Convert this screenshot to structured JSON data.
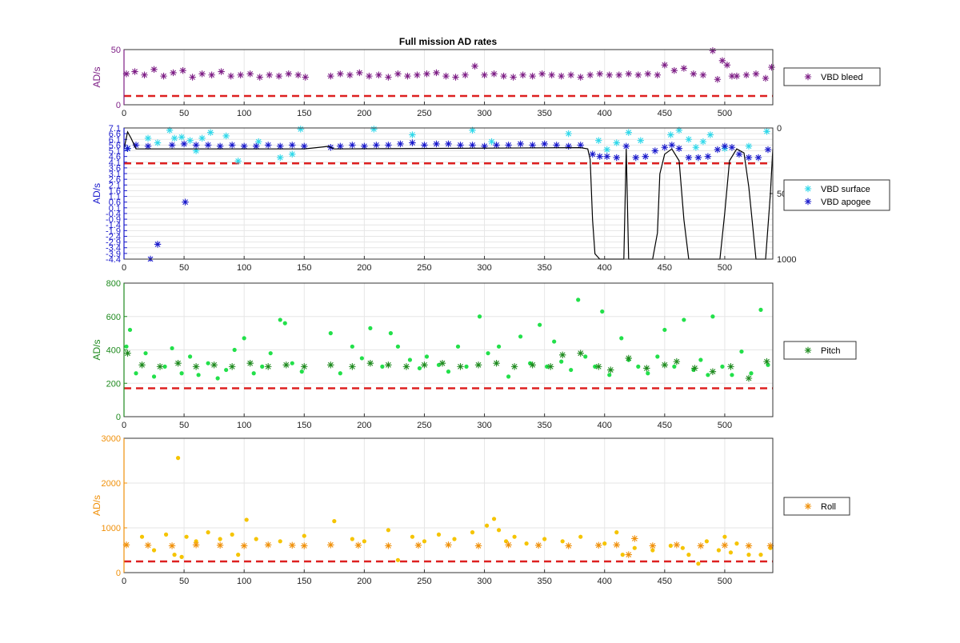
{
  "figure": {
    "title": "Full mission AD rates"
  },
  "chart_data": [
    {
      "type": "scatter",
      "ylabel": "AD/s",
      "xlim": [
        0,
        540
      ],
      "ylim": [
        0,
        50
      ],
      "xticks": [
        "0",
        "50",
        "100",
        "150",
        "200",
        "250",
        "300",
        "350",
        "400",
        "450",
        "500"
      ],
      "yticks": [
        "0",
        "50"
      ],
      "grid": true,
      "color": "#7e1f86",
      "threshold": 8,
      "threshold_color": "#dd2020",
      "legend": {
        "position": "right",
        "entries": [
          {
            "name": "VBD bleed",
            "color": "#7e1f86",
            "marker": "asterisk"
          }
        ]
      },
      "series": [
        {
          "name": "VBD bleed",
          "color": "#7e1f86",
          "marker": "asterisk",
          "x": [
            2,
            9,
            17,
            25,
            33,
            41,
            49,
            57,
            65,
            73,
            81,
            89,
            97,
            105,
            113,
            121,
            129,
            137,
            145,
            151,
            172,
            180,
            188,
            196,
            204,
            212,
            220,
            228,
            236,
            244,
            252,
            260,
            268,
            276,
            284,
            292,
            300,
            308,
            316,
            324,
            332,
            340,
            348,
            356,
            364,
            372,
            380,
            388,
            396,
            404,
            412,
            420,
            428,
            436,
            444,
            450,
            458,
            466,
            474,
            482,
            490,
            494,
            498,
            502,
            506,
            510,
            518,
            526,
            534,
            539
          ],
          "y": [
            28,
            30,
            27,
            32,
            26,
            29,
            31,
            25,
            28,
            27,
            30,
            26,
            27,
            28,
            25,
            27,
            26,
            28,
            27,
            25,
            26,
            28,
            27,
            29,
            26,
            27,
            25,
            28,
            26,
            27,
            28,
            29,
            26,
            25,
            27,
            35,
            27,
            28,
            26,
            25,
            27,
            26,
            28,
            27,
            26,
            27,
            25,
            27,
            28,
            27,
            27,
            28,
            27,
            28,
            27,
            36,
            31,
            33,
            28,
            27,
            49,
            23,
            40,
            36,
            26,
            26,
            27,
            28,
            24,
            34
          ]
        }
      ]
    },
    {
      "type": "scatter",
      "ylabel": "AD/s",
      "xlim": [
        0,
        540
      ],
      "ylim": [
        -4.4,
        7.1
      ],
      "y2lim": [
        0,
        1000
      ],
      "y2ticks": [
        "0",
        "500",
        "1000"
      ],
      "y2_reversed": true,
      "xticks": [
        "0",
        "50",
        "100",
        "150",
        "200",
        "250",
        "300",
        "350",
        "400",
        "450",
        "500"
      ],
      "yticks": [
        "7.1",
        "6.6",
        "6.1",
        "5.6",
        "5.1",
        "4.6",
        "4.1",
        "3.6",
        "3.1",
        "2.6",
        "2.1",
        "1.6",
        "1.1",
        "0.6",
        "0.1",
        "-0.4",
        "-0.9",
        "-1.4",
        "-1.9",
        "-2.4",
        "-2.9",
        "-3.4",
        "-3.9",
        "-4.4"
      ],
      "grid": true,
      "color": "#1a1acc",
      "threshold": 4.0,
      "threshold_color": "#dd2020",
      "legend": {
        "position": "right",
        "entries": [
          {
            "name": "VBD surface",
            "color": "#2fd8ea",
            "marker": "asterisk"
          },
          {
            "name": "VBD apogee",
            "color": "#1a1acc",
            "marker": "asterisk"
          }
        ]
      },
      "series": [
        {
          "name": "VBD surface",
          "color": "#2fd8ea",
          "marker": "asterisk",
          "x": [
            3,
            20,
            28,
            38,
            42,
            48,
            55,
            60,
            65,
            72,
            85,
            95,
            112,
            130,
            140,
            147,
            208,
            240,
            290,
            306,
            370,
            395,
            402,
            410,
            420,
            430,
            455,
            462,
            470,
            476,
            482,
            488,
            500,
            520,
            535
          ],
          "y": [
            5.3,
            6.2,
            5.8,
            6.9,
            6.2,
            6.3,
            6.0,
            5.1,
            6.2,
            6.7,
            6.4,
            4.2,
            5.9,
            4.5,
            4.8,
            7.0,
            7.0,
            6.5,
            6.9,
            5.9,
            6.6,
            6.0,
            5.2,
            5.8,
            6.7,
            6.0,
            6.5,
            6.9,
            6.1,
            5.4,
            5.9,
            6.5,
            5.3,
            5.5,
            6.8
          ]
        },
        {
          "name": "VBD apogee",
          "color": "#1a1acc",
          "marker": "asterisk",
          "x": [
            3,
            10,
            20,
            22,
            28,
            40,
            50,
            51,
            60,
            70,
            80,
            90,
            100,
            110,
            120,
            130,
            140,
            150,
            172,
            180,
            190,
            200,
            210,
            220,
            230,
            240,
            250,
            260,
            270,
            280,
            290,
            300,
            310,
            320,
            330,
            340,
            350,
            360,
            370,
            380,
            390,
            396,
            402,
            410,
            418,
            426,
            434,
            442,
            450,
            456,
            462,
            470,
            478,
            486,
            494,
            500,
            506,
            512,
            520,
            528,
            536
          ],
          "y": [
            5.3,
            5.6,
            5.5,
            -4.4,
            -3.1,
            5.6,
            5.7,
            0.6,
            5.6,
            5.6,
            5.5,
            5.6,
            5.5,
            5.5,
            5.6,
            5.5,
            5.6,
            5.5,
            5.4,
            5.5,
            5.6,
            5.5,
            5.6,
            5.6,
            5.7,
            5.8,
            5.6,
            5.7,
            5.7,
            5.6,
            5.6,
            5.5,
            5.6,
            5.6,
            5.7,
            5.6,
            5.7,
            5.6,
            5.5,
            5.6,
            4.8,
            4.6,
            4.6,
            4.5,
            5.5,
            4.5,
            4.6,
            5.1,
            5.4,
            5.6,
            5.3,
            4.5,
            4.5,
            4.6,
            5.2,
            5.5,
            5.4,
            4.8,
            4.5,
            4.5,
            5.2
          ]
        },
        {
          "name": "",
          "color": "#000000",
          "marker": "line",
          "axis": "right",
          "x": [
            0,
            3,
            6,
            10,
            150,
            160,
            170,
            175,
            380,
            386,
            388,
            390,
            392,
            396,
            416,
            418,
            420,
            422,
            426,
            440,
            444,
            446,
            450,
            456,
            462,
            466,
            470,
            474,
            496,
            500,
            504,
            510,
            516,
            520,
            526,
            534,
            538,
            540
          ],
          "y": [
            160,
            30,
            80,
            160,
            160,
            150,
            140,
            160,
            150,
            160,
            240,
            700,
            960,
            1000,
            1000,
            160,
            1000,
            1000,
            1000,
            1000,
            800,
            350,
            200,
            160,
            250,
            700,
            1000,
            1000,
            1000,
            650,
            250,
            160,
            190,
            450,
            1000,
            1000,
            500,
            160
          ]
        }
      ]
    },
    {
      "type": "scatter",
      "ylabel": "AD/s",
      "xlim": [
        0,
        540
      ],
      "ylim": [
        0,
        800
      ],
      "xticks": [
        "0",
        "50",
        "100",
        "150",
        "200",
        "250",
        "300",
        "350",
        "400",
        "450",
        "500"
      ],
      "yticks": [
        "0",
        "200",
        "400",
        "600",
        "800"
      ],
      "grid": true,
      "color": "#1e8a1e",
      "threshold": 170,
      "threshold_color": "#dd2020",
      "legend": {
        "position": "right",
        "entries": [
          {
            "name": "Pitch",
            "color": "#1e8a1e",
            "marker": "asterisk"
          }
        ]
      },
      "series": [
        {
          "name": "",
          "color": "#22e04a",
          "marker": "dot",
          "x": [
            2,
            5,
            10,
            18,
            25,
            34,
            40,
            48,
            55,
            62,
            70,
            78,
            85,
            92,
            100,
            108,
            115,
            122,
            130,
            134,
            140,
            148,
            172,
            180,
            190,
            198,
            205,
            215,
            222,
            228,
            238,
            246,
            252,
            262,
            270,
            278,
            285,
            296,
            303,
            312,
            320,
            330,
            338,
            346,
            352,
            358,
            364,
            372,
            378,
            384,
            392,
            398,
            404,
            414,
            420,
            428,
            436,
            444,
            450,
            458,
            466,
            474,
            480,
            486,
            490,
            498,
            506,
            514,
            522,
            530,
            536
          ],
          "y": [
            420,
            520,
            260,
            380,
            240,
            300,
            410,
            260,
            360,
            250,
            320,
            230,
            280,
            400,
            470,
            260,
            300,
            380,
            580,
            560,
            320,
            270,
            500,
            260,
            420,
            350,
            530,
            300,
            500,
            420,
            340,
            290,
            360,
            310,
            270,
            420,
            300,
            600,
            380,
            420,
            240,
            480,
            320,
            550,
            300,
            450,
            330,
            280,
            700,
            360,
            300,
            630,
            250,
            470,
            340,
            300,
            260,
            360,
            520,
            300,
            580,
            280,
            340,
            250,
            600,
            300,
            250,
            390,
            260,
            640,
            310
          ]
        },
        {
          "name": "Pitch",
          "color": "#1e8a1e",
          "marker": "asterisk",
          "x": [
            3,
            15,
            30,
            45,
            60,
            75,
            90,
            105,
            120,
            135,
            150,
            172,
            190,
            205,
            220,
            235,
            250,
            265,
            280,
            295,
            310,
            325,
            340,
            355,
            365,
            380,
            395,
            405,
            420,
            435,
            450,
            460,
            475,
            490,
            505,
            520,
            535
          ],
          "y": [
            380,
            310,
            300,
            320,
            300,
            310,
            300,
            320,
            300,
            310,
            300,
            310,
            300,
            320,
            310,
            300,
            310,
            320,
            300,
            310,
            320,
            300,
            310,
            300,
            370,
            380,
            300,
            280,
            350,
            290,
            310,
            330,
            290,
            270,
            300,
            230,
            330
          ]
        }
      ]
    },
    {
      "type": "scatter",
      "ylabel": "AD/s",
      "xlim": [
        0,
        540
      ],
      "ylim": [
        0,
        3000
      ],
      "xticks": [
        "0",
        "50",
        "100",
        "150",
        "200",
        "250",
        "300",
        "350",
        "400",
        "450",
        "500"
      ],
      "yticks": [
        "0",
        "1000",
        "2000",
        "3000"
      ],
      "grid": true,
      "color": "#f0900a",
      "threshold": 250,
      "threshold_color": "#dd2020",
      "legend": {
        "position": "right",
        "entries": [
          {
            "name": "Roll",
            "color": "#f0900a",
            "marker": "asterisk"
          }
        ]
      },
      "series": [
        {
          "name": "",
          "color": "#f5c400",
          "marker": "dot",
          "x": [
            15,
            25,
            35,
            42,
            45,
            48,
            52,
            60,
            70,
            80,
            90,
            95,
            102,
            110,
            130,
            150,
            175,
            190,
            200,
            220,
            228,
            240,
            250,
            262,
            275,
            290,
            302,
            308,
            312,
            318,
            325,
            335,
            350,
            365,
            380,
            400,
            410,
            415,
            425,
            440,
            455,
            465,
            470,
            478,
            485,
            495,
            500,
            505,
            510,
            520,
            530,
            538
          ],
          "y": [
            800,
            500,
            850,
            400,
            2560,
            350,
            800,
            700,
            900,
            750,
            850,
            400,
            1180,
            750,
            700,
            820,
            1150,
            750,
            700,
            950,
            280,
            800,
            700,
            850,
            750,
            900,
            1050,
            1200,
            950,
            700,
            800,
            650,
            750,
            700,
            800,
            650,
            900,
            400,
            550,
            500,
            600,
            550,
            400,
            200,
            700,
            500,
            800,
            450,
            650,
            400,
            400,
            550
          ]
        },
        {
          "name": "Roll",
          "color": "#f0900a",
          "marker": "asterisk",
          "x": [
            2,
            20,
            40,
            60,
            80,
            100,
            120,
            140,
            150,
            172,
            195,
            220,
            245,
            270,
            295,
            320,
            345,
            370,
            395,
            410,
            420,
            425,
            440,
            460,
            480,
            500,
            520,
            538
          ],
          "y": [
            620,
            610,
            600,
            620,
            610,
            600,
            620,
            610,
            600,
            620,
            610,
            600,
            610,
            620,
            600,
            620,
            610,
            600,
            610,
            620,
            400,
            760,
            600,
            620,
            600,
            610,
            600,
            600
          ]
        }
      ]
    }
  ]
}
